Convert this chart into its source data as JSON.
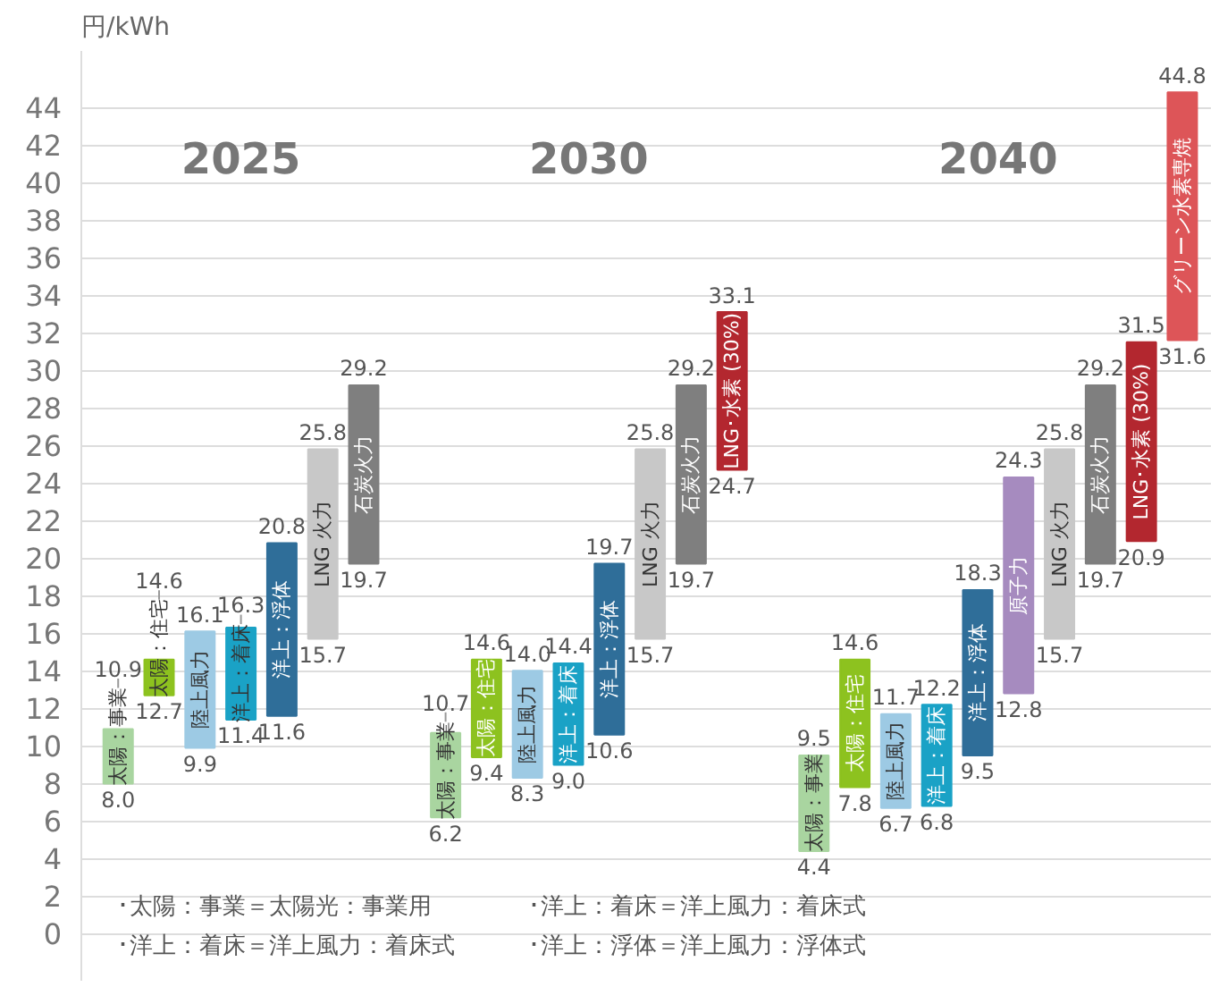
{
  "chart_data": {
    "type": "bar",
    "ylabel": "円/kWh",
    "categories": [
      "太陽：事業",
      "太陽：住宅",
      "陸上風力",
      "洋上：着床",
      "洋上：浮体",
      "LNG 火力",
      "石炭火力",
      null,
      "太陽：事業",
      "太陽：住宅",
      "陸上風力",
      "洋上：着床",
      "洋上：浮体",
      "LNG 火力",
      "石炭火力",
      "LNG･水素 (30%)",
      null,
      "太陽：事業",
      "太陽：住宅",
      "陸上風力",
      "洋上：着床",
      "洋上：浮体",
      "原子力",
      "LNG 火力",
      "石炭火力",
      "LNG･水素 (30%)",
      "グリーン水素専焼"
    ],
    "base": [
      8.0,
      12.7,
      9.9,
      11.4,
      11.6,
      15.7,
      19.7,
      null,
      6.2,
      9.4,
      8.3,
      9.0,
      10.6,
      15.7,
      19.7,
      24.7,
      null,
      4.4,
      7.8,
      6.7,
      6.8,
      9.5,
      12.8,
      15.7,
      19.7,
      20.9,
      31.6
    ],
    "values": [
      2.9,
      1.9,
      6.2,
      4.9,
      9.2,
      10.1,
      9.5,
      null,
      4.5,
      5.2,
      5.7,
      5.4,
      9.1,
      10.1,
      9.5,
      8.4,
      null,
      5.1,
      6.8,
      5.0,
      5.4,
      8.8,
      11.5,
      10.1,
      9.5,
      10.6,
      13.2
    ],
    "value_labels": [
      [
        "8.0",
        "10.9"
      ],
      [
        "12.7",
        "14.6"
      ],
      [
        "9.9",
        "16.1"
      ],
      [
        "11.4",
        "16.3"
      ],
      [
        "11.6",
        "20.8"
      ],
      [
        "15.7",
        "25.8"
      ],
      [
        "19.7",
        "29.2"
      ],
      null,
      [
        "6.2",
        "10.7"
      ],
      [
        "9.4",
        "14.6"
      ],
      [
        "8.3",
        "14.0"
      ],
      [
        "9.0",
        "14.4"
      ],
      [
        "10.6",
        "19.7"
      ],
      [
        "15.7",
        "25.8"
      ],
      [
        "19.7",
        "29.2"
      ],
      [
        "24.7",
        "33.1"
      ],
      null,
      [
        "4.4",
        "9.5"
      ],
      [
        "7.8",
        "14.6"
      ],
      [
        "6.7",
        "11.7"
      ],
      [
        "6.8",
        "12.2"
      ],
      [
        "9.5",
        "18.3"
      ],
      [
        "12.8",
        "24.3"
      ],
      [
        "15.7",
        "25.8"
      ],
      [
        "19.7",
        "29.2"
      ],
      [
        "20.9",
        "31.5"
      ],
      [
        "31.6",
        "44.8"
      ]
    ],
    "colors": [
      "#a9d5a0",
      "#8dc21f",
      "#9dcae4",
      "#1aa2c6",
      "#2f6e99",
      "#c8c8c8",
      "#7f7f7f",
      null,
      "#a9d5a0",
      "#8dc21f",
      "#9dcae4",
      "#1aa2c6",
      "#2f6e99",
      "#c8c8c8",
      "#7f7f7f",
      "#b3272f",
      null,
      "#a9d5a0",
      "#8dc21f",
      "#9dcae4",
      "#1aa2c6",
      "#2f6e99",
      "#a68bbf",
      "#c8c8c8",
      "#7f7f7f",
      "#b3272f",
      "#dd5558"
    ],
    "annotations": [
      "2025",
      "2030",
      "2040",
      "･太陽：事業＝太陽光：事業用",
      "･洋上：着床＝洋上風力：着床式",
      "･洋上：着床＝洋上風力：着床式",
      "･洋上：浮体＝洋上風力：浮体式"
    ],
    "ylim": [
      -2.5,
      47
    ],
    "yticks": [
      0,
      2,
      4,
      6,
      8,
      10,
      12,
      14,
      16,
      18,
      20,
      22,
      24,
      26,
      28,
      30,
      32,
      34,
      36,
      38,
      40,
      42,
      44
    ],
    "grid": "y"
  }
}
